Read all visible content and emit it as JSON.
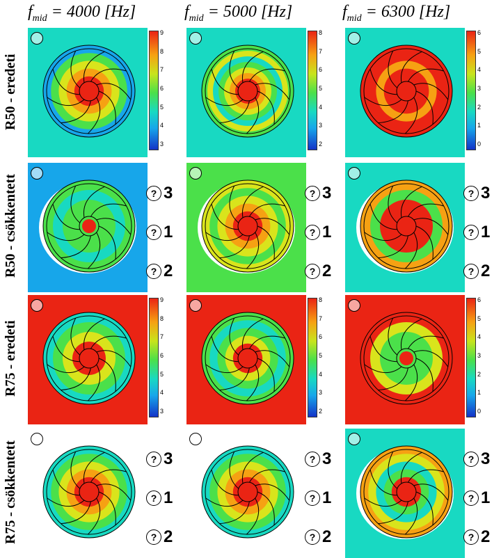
{
  "columns": [
    {
      "prefix": "f",
      "sub": "mid",
      "suffix": " = 4000 [Hz]"
    },
    {
      "prefix": "f",
      "sub": "mid",
      "suffix": " = 5000 [Hz]"
    },
    {
      "prefix": "f",
      "sub": "mid",
      "suffix": " = 6300 [Hz]"
    }
  ],
  "rows": [
    {
      "label": "R50 - eredeti"
    },
    {
      "label": "R50 - csökkentett"
    },
    {
      "label": "R75 - eredeti"
    },
    {
      "label": "R75 - csökkentett"
    }
  ],
  "colorbars": [
    {
      "ticks": [
        "9",
        "8",
        "7",
        "6",
        "5",
        "4",
        "3"
      ]
    },
    {
      "ticks": [
        "8",
        "7",
        "6",
        "5",
        "4",
        "3",
        "2"
      ]
    },
    {
      "ticks": [
        "6",
        "5",
        "4",
        "3",
        "2",
        "1",
        "0"
      ]
    }
  ],
  "marker_symbol": "?",
  "marker_labels": [
    "3",
    "1",
    "2"
  ],
  "colors": {
    "red": "#ea2414",
    "orange": "#f6a113",
    "yellow": "#d9e41c",
    "green": "#4be04a",
    "cyan": "#18d9c2",
    "blue": "#17a6ea",
    "darkblue": "#1433c7"
  }
}
